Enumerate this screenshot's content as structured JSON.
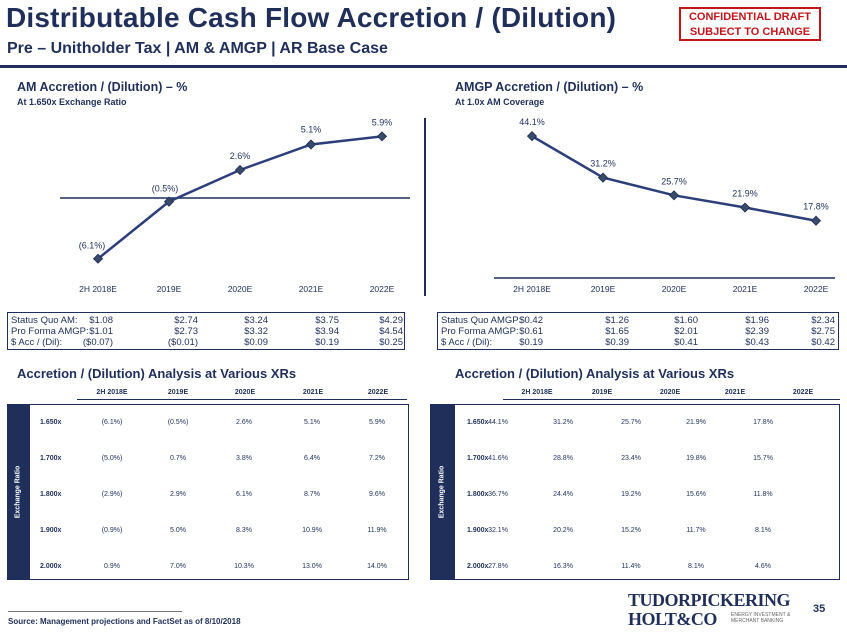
{
  "header": {
    "title": "Distributable Cash Flow Accretion / (Dilution)",
    "subtitle": "Pre – Unitholder Tax | AM & AMGP | AR Base Case",
    "stamp_line1": "CONFIDENTIAL DRAFT",
    "stamp_line2": "SUBJECT TO CHANGE"
  },
  "left": {
    "title": "AM Accretion / (Dilution) – %",
    "subtitle": "At 1.650x Exchange Ratio",
    "metrics": [
      {
        "label": "Status Quo AM:",
        "values": [
          "$1.08",
          "$2.74",
          "$3.24",
          "$3.75",
          "$4.29"
        ]
      },
      {
        "label": "Pro Forma AMGP:",
        "values": [
          "$1.01",
          "$2.73",
          "$3.32",
          "$3.94",
          "$4.54"
        ]
      },
      {
        "label": "$ Acc / (Dil):",
        "values": [
          "($0.07)",
          "($0.01)",
          "$0.09",
          "$0.19",
          "$0.25"
        ]
      }
    ],
    "sens_title": "Accretion / (Dilution) Analysis at Various XRs",
    "sens_cols": [
      "2H 2018E",
      "2019E",
      "2020E",
      "2021E",
      "2022E"
    ],
    "sens_rows": [
      {
        "xr": "1.650x",
        "values": [
          "(6.1%)",
          "(0.5%)",
          "2.6%",
          "5.1%",
          "5.9%"
        ]
      },
      {
        "xr": "1.700x",
        "values": [
          "(5.0%)",
          "0.7%",
          "3.8%",
          "6.4%",
          "7.2%"
        ]
      },
      {
        "xr": "1.800x",
        "values": [
          "(2.9%)",
          "2.9%",
          "6.1%",
          "8.7%",
          "9.6%"
        ]
      },
      {
        "xr": "1.900x",
        "values": [
          "(0.9%)",
          "5.0%",
          "8.3%",
          "10.9%",
          "11.9%"
        ]
      },
      {
        "xr": "2.000x",
        "values": [
          "0.9%",
          "7.0%",
          "10.3%",
          "13.0%",
          "14.0%"
        ]
      }
    ],
    "xr_label": "Exchange Ratio"
  },
  "right": {
    "title": "AMGP Accretion / (Dilution) – %",
    "subtitle": "At 1.0x AM Coverage",
    "metrics": [
      {
        "label": "Status Quo AMGP:",
        "values": [
          "$0.42",
          "$1.26",
          "$1.60",
          "$1.96",
          "$2.34"
        ]
      },
      {
        "label": "Pro Forma AMGP:",
        "values": [
          "$0.61",
          "$1.65",
          "$2.01",
          "$2.39",
          "$2.75"
        ]
      },
      {
        "label": "$ Acc / (Dil):",
        "values": [
          "$0.19",
          "$0.39",
          "$0.41",
          "$0.43",
          "$0.42"
        ]
      }
    ],
    "sens_title": "Accretion / (Dilution) Analysis at Various XRs",
    "sens_cols": [
      "2H 2018E",
      "2019E",
      "2020E",
      "2021E",
      "2022E"
    ],
    "sens_rows": [
      {
        "xr": "1.650x",
        "values": [
          "44.1%",
          "31.2%",
          "25.7%",
          "21.9%",
          "17.8%"
        ]
      },
      {
        "xr": "1.700x",
        "values": [
          "41.6%",
          "28.8%",
          "23.4%",
          "19.8%",
          "15.7%"
        ]
      },
      {
        "xr": "1.800x",
        "values": [
          "36.7%",
          "24.4%",
          "19.2%",
          "15.6%",
          "11.8%"
        ]
      },
      {
        "xr": "1.900x",
        "values": [
          "32.1%",
          "20.2%",
          "15.2%",
          "11.7%",
          "8.1%"
        ]
      },
      {
        "xr": "2.000x",
        "values": [
          "27.8%",
          "16.3%",
          "11.4%",
          "8.1%",
          "4.6%"
        ]
      }
    ],
    "xr_label": "Exchange Ratio"
  },
  "chart_data": [
    {
      "type": "line",
      "categories": [
        "2H 2018E",
        "2019E",
        "2020E",
        "2021E",
        "2022E"
      ],
      "series": [
        {
          "values": [
            -6.1,
            -0.5,
            2.6,
            5.1,
            5.9
          ]
        }
      ],
      "data_labels": [
        "(6.1%)",
        "(0.5%)",
        "2.6%",
        "5.1%",
        "5.9%"
      ],
      "ylim": [
        -7.5,
        7.5
      ],
      "grid": false,
      "line_color": "#2d3f7a"
    },
    {
      "type": "line",
      "categories": [
        "2H 2018E",
        "2019E",
        "2020E",
        "2021E",
        "2022E"
      ],
      "series": [
        {
          "values": [
            44.1,
            31.2,
            25.7,
            21.9,
            17.8
          ]
        }
      ],
      "data_labels": [
        "44.1%",
        "31.2%",
        "25.7%",
        "21.9%",
        "17.8%"
      ],
      "ylim": [
        0,
        46
      ],
      "grid": false,
      "line_color": "#2d3f7a"
    }
  ],
  "footer": {
    "source": "Source: Management projections and FactSet as of 8/10/2018",
    "logo_line1": "TUDORPICKERING",
    "logo_line2": "HOLT&CO",
    "logo_tag1": "ENERGY INVESTMENT &",
    "logo_tag2": "MERCHANT BANKING",
    "page": "35"
  }
}
